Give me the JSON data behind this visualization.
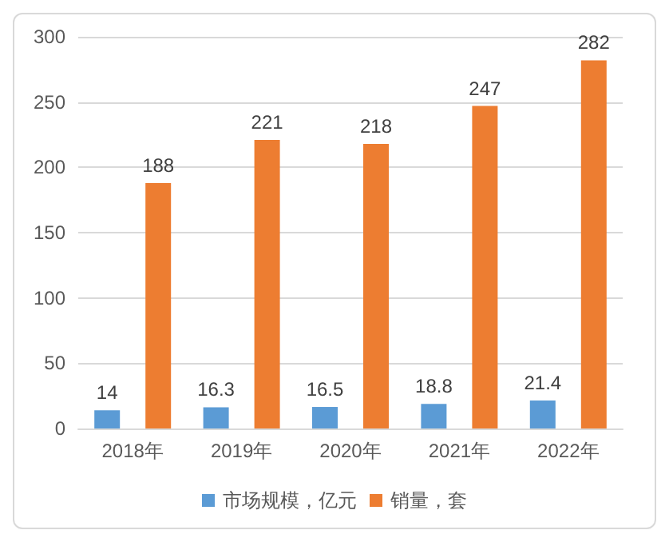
{
  "chart_data": {
    "type": "bar",
    "categories": [
      "2018年",
      "2019年",
      "2020年",
      "2021年",
      "2022年"
    ],
    "series": [
      {
        "name": "市场规模，亿元",
        "color": "#5b9bd5",
        "values": [
          14,
          16.3,
          16.5,
          18.8,
          21.4
        ]
      },
      {
        "name": "销量，套",
        "color": "#ed7d31",
        "values": [
          188,
          221,
          218,
          247,
          282
        ]
      }
    ],
    "ylim": [
      0,
      300
    ],
    "yticks": [
      0,
      50,
      100,
      150,
      200,
      250,
      300
    ],
    "grid": "y",
    "legend": "bottom",
    "data_labels": true
  }
}
